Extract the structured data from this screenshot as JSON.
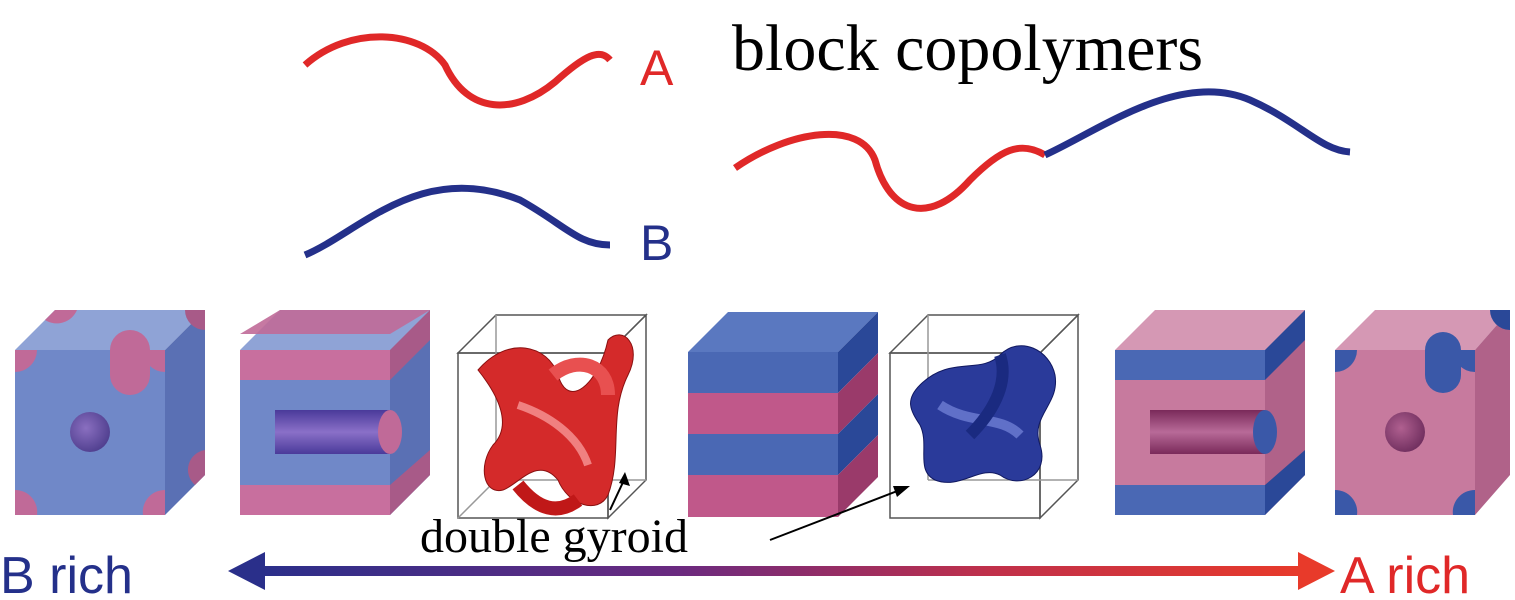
{
  "polymers": {
    "a": "A",
    "b": "B"
  },
  "title": "block copolymers",
  "annotation": "double gyroid",
  "axis": {
    "left": "B rich",
    "right": "A rich"
  }
}
